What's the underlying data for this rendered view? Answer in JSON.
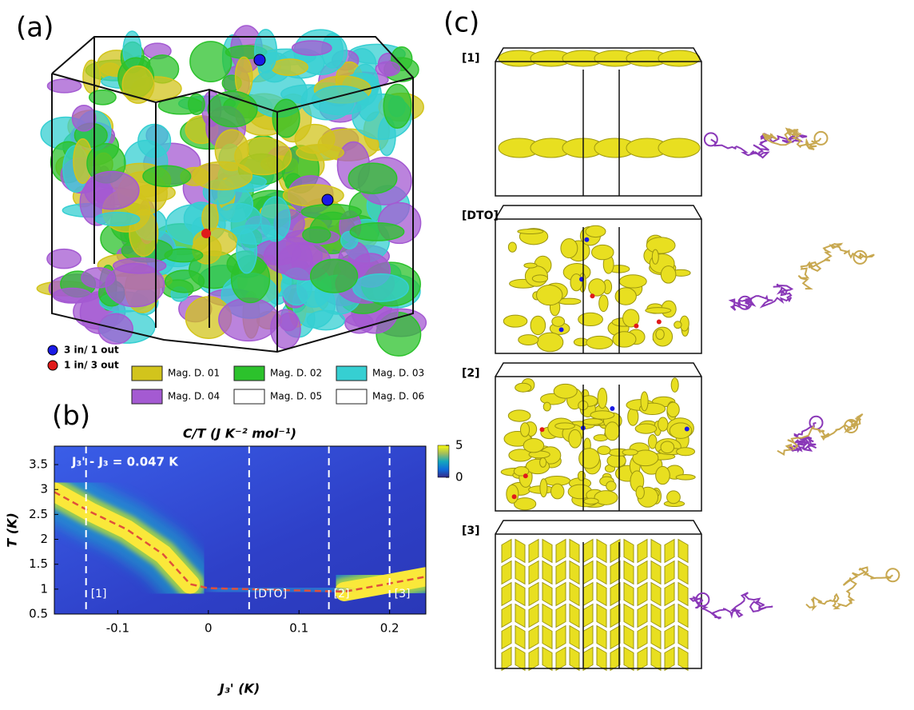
{
  "panel_a": {
    "label": "(a)",
    "legend": [
      {
        "label": "3 in/ 1 out",
        "color": "#1a1ae6"
      },
      {
        "label": "1 in/ 3 out",
        "color": "#e01a1a"
      }
    ],
    "domains": [
      {
        "label": "Mag. D. 01",
        "color": "#d2c41c"
      },
      {
        "label": "Mag. D. 02",
        "color": "#2cc22c"
      },
      {
        "label": "Mag. D. 03",
        "color": "#36cfd2"
      },
      {
        "label": "Mag. D. 04",
        "color": "#a45ad2"
      },
      {
        "label": "Mag. D. 05",
        "color": "#ffffff"
      },
      {
        "label": "Mag. D. 06",
        "color": "#ffffff"
      }
    ]
  },
  "chart_data": {
    "type": "heatmap",
    "panel_label": "(b)",
    "title": "C/T (J K⁻² mol⁻¹)",
    "x_label": "J₃' (K)",
    "y_label": "T (K)",
    "annotation": "J₃' - J₃ = 0.047 K",
    "xlim": [
      -0.17,
      0.24
    ],
    "ylim": [
      0.5,
      3.87
    ],
    "xticks": [
      -0.1,
      0,
      0.1,
      0.2
    ],
    "yticks": [
      0.5,
      1,
      1.5,
      2,
      2.5,
      3,
      3.5
    ],
    "clim": [
      0,
      5
    ],
    "cticks": [
      0,
      5
    ],
    "peak_line": {
      "color": "#e0503a",
      "x": [
        -0.17,
        -0.13,
        -0.09,
        -0.05,
        -0.02,
        0.0,
        0.15,
        0.19,
        0.24
      ],
      "y": [
        2.95,
        2.55,
        2.2,
        1.7,
        1.1,
        1.02,
        0.95,
        1.08,
        1.25
      ]
    },
    "cuts": [
      {
        "x": -0.135,
        "label": "[1]"
      },
      {
        "x": 0.045,
        "label": "[DTO]"
      },
      {
        "x": 0.133,
        "label": "[2]"
      },
      {
        "x": 0.2,
        "label": "[3]"
      }
    ]
  },
  "panel_c": {
    "label": "(c)",
    "rows": [
      "[1]",
      "[DTO]",
      "[2]",
      "[3]"
    ]
  }
}
